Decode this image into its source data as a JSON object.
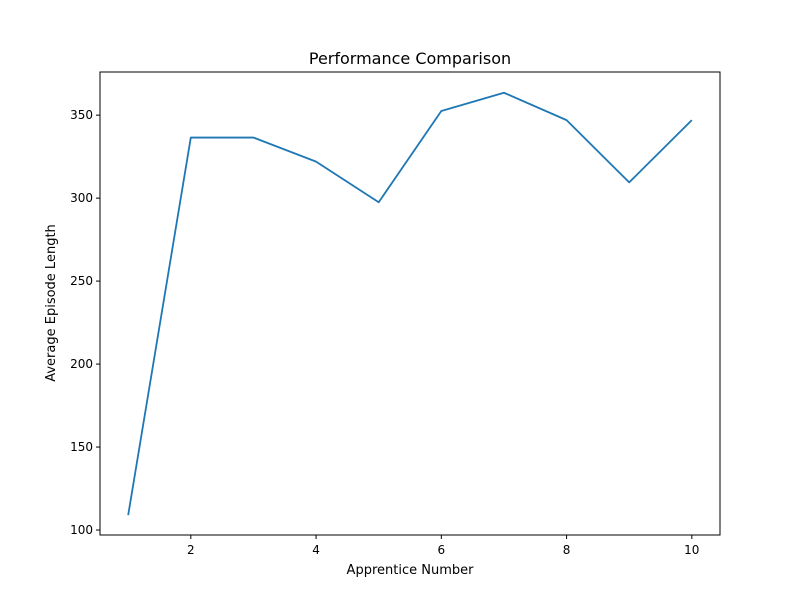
{
  "chart_data": {
    "type": "line",
    "title": "Performance Comparison",
    "xlabel": "Apprentice Number",
    "ylabel": "Average Episode Length",
    "xlim": [
      0.55,
      10.45
    ],
    "ylim": [
      97,
      376
    ],
    "xticks": [
      2,
      4,
      6,
      8,
      10
    ],
    "yticks": [
      100,
      150,
      200,
      250,
      300,
      350
    ],
    "grid": false,
    "series": [
      {
        "color": "#1f77b4",
        "x": [
          1,
          2,
          3,
          4,
          5,
          6,
          7,
          8,
          9,
          10
        ],
        "y": [
          109,
          336.5,
          336.5,
          322,
          297.5,
          352.5,
          363.5,
          347,
          309.5,
          347
        ]
      }
    ]
  }
}
